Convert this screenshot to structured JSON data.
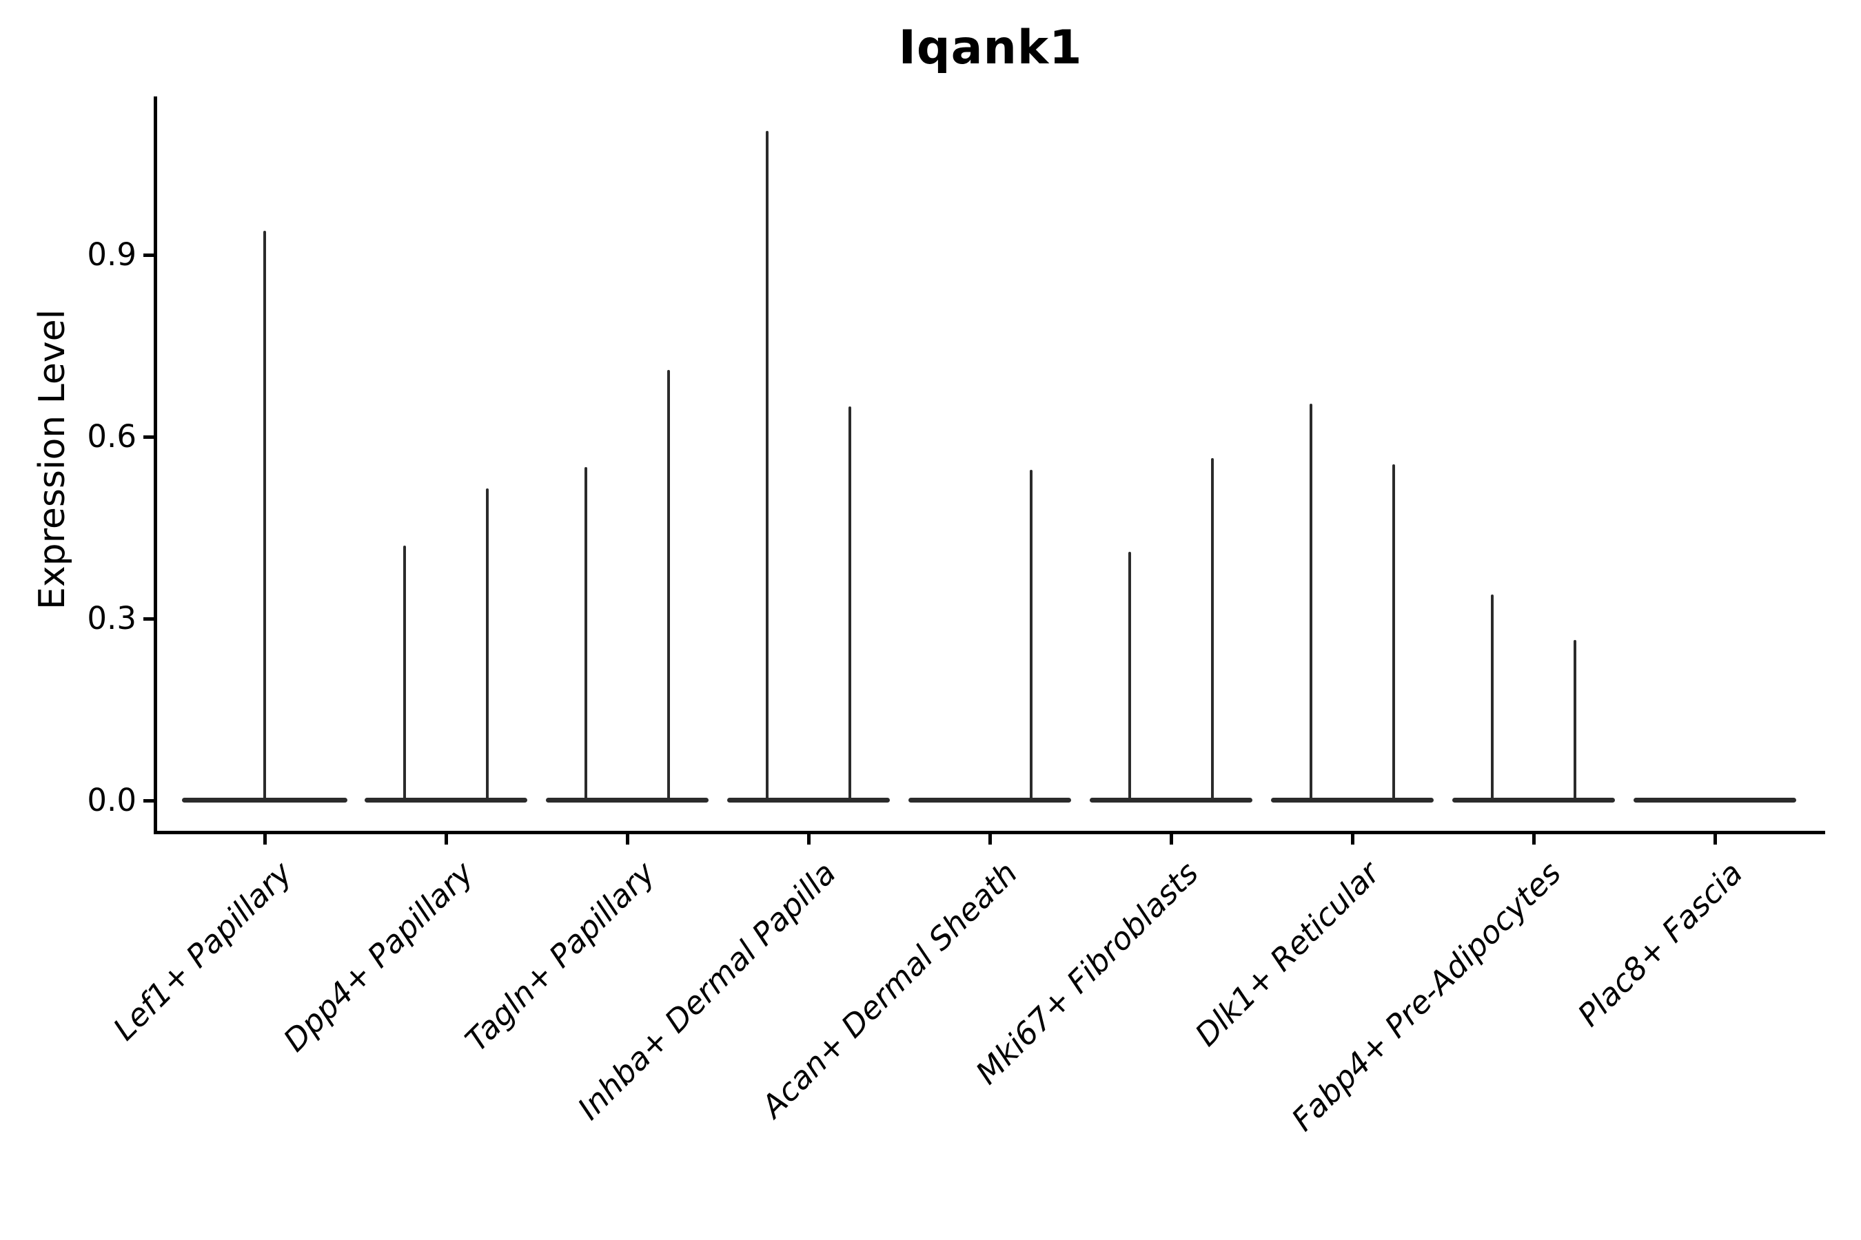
{
  "chart_data": {
    "type": "violin",
    "title": "Iqank1",
    "xlabel": "",
    "ylabel": "Expression Level",
    "ylim": [
      -0.054,
      1.16
    ],
    "yticks": [
      {
        "value": 0.0,
        "label": "0.0"
      },
      {
        "value": 0.3,
        "label": "0.3"
      },
      {
        "value": 0.6,
        "label": "0.6"
      },
      {
        "value": 0.9,
        "label": "0.9"
      }
    ],
    "grid": false,
    "legend_position": "none",
    "categories": [
      "Lef1+ Papillary",
      "Dpp4+ Papillary",
      "Tagln+ Papillary",
      "Inhba+ Dermal Papilla",
      "Acan+ Dermal Sheath",
      "Mki67+ Fibroblasts",
      "Dlk1+ Reticular",
      "Fabp4+ Pre-Adipocytes",
      "Plac8+ Fascia"
    ],
    "violins": [
      {
        "category": "Lef1+ Papillary",
        "groups": [
          {
            "max_expression": 0.94
          }
        ]
      },
      {
        "category": "Dpp4+ Papillary",
        "groups": [
          {
            "max_expression": 0.42
          },
          {
            "max_expression": 0.515
          }
        ]
      },
      {
        "category": "Tagln+ Papillary",
        "groups": [
          {
            "max_expression": 0.55
          },
          {
            "max_expression": 0.71
          }
        ]
      },
      {
        "category": "Inhba+ Dermal Papilla",
        "groups": [
          {
            "max_expression": 1.105
          },
          {
            "max_expression": 0.65
          }
        ]
      },
      {
        "category": "Acan+ Dermal Sheath",
        "groups": [
          {
            "max_expression": 0.0
          },
          {
            "max_expression": 0.545
          }
        ]
      },
      {
        "category": "Mki67+ Fibroblasts",
        "groups": [
          {
            "max_expression": 0.41
          },
          {
            "max_expression": 0.565
          }
        ]
      },
      {
        "category": "Dlk1+ Reticular",
        "groups": [
          {
            "max_expression": 0.655
          },
          {
            "max_expression": 0.555
          }
        ]
      },
      {
        "category": "Fabp4+ Pre-Adipocytes",
        "groups": [
          {
            "max_expression": 0.34
          },
          {
            "max_expression": 0.265
          }
        ]
      },
      {
        "category": "Plac8+ Fascia",
        "groups": [
          {
            "max_expression": 0.0
          },
          {
            "max_expression": 0.0
          }
        ]
      }
    ],
    "style": {
      "violin_color": "#2b2b2b",
      "axis_color": "#000000",
      "background_color": "#ffffff"
    }
  }
}
